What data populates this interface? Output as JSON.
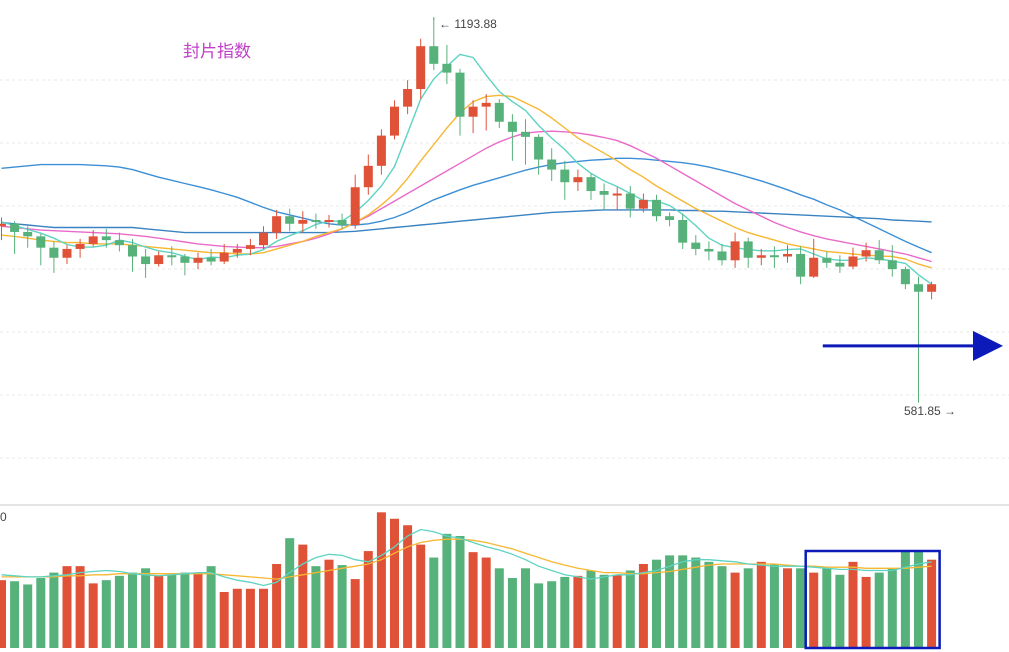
{
  "chart_data": {
    "type": "candlestick",
    "title": "封片指数",
    "annotations": {
      "high_label": "← 1193.88",
      "low_label": "581.85 →",
      "volume_axis_label": "0"
    },
    "price_range": [
      440,
      1215
    ],
    "colors": {
      "up": "#e05238",
      "down": "#56b17b",
      "ma5": "#5ed3c2",
      "ma10": "#f7b733",
      "ma20": "#ea6ac9",
      "ma60": "#3c8fd6",
      "ma120": "#3a83c2",
      "marker": "#0b1ab8"
    },
    "candles": [
      [
        862,
        866,
        848,
        876,
        840
      ],
      [
        866,
        853,
        846,
        870,
        818
      ],
      [
        853,
        846,
        838,
        862,
        828
      ],
      [
        846,
        828,
        820,
        850,
        800
      ],
      [
        828,
        812,
        822,
        838,
        788
      ],
      [
        812,
        826,
        812,
        832,
        802
      ],
      [
        826,
        834,
        828,
        842,
        812
      ],
      [
        834,
        846,
        840,
        856,
        830
      ],
      [
        846,
        840,
        850,
        858,
        828
      ],
      [
        840,
        832,
        842,
        852,
        822
      ],
      [
        832,
        814,
        828,
        842,
        790
      ],
      [
        814,
        802,
        812,
        826,
        780
      ],
      [
        802,
        816,
        814,
        822,
        798
      ],
      [
        816,
        814,
        806,
        830,
        800
      ],
      [
        814,
        804,
        812,
        818,
        784
      ],
      [
        804,
        812,
        808,
        820,
        794
      ],
      [
        812,
        806,
        818,
        826,
        800
      ],
      [
        806,
        820,
        816,
        834,
        802
      ],
      [
        820,
        826,
        824,
        834,
        812
      ],
      [
        826,
        832,
        820,
        842,
        816
      ],
      [
        832,
        852,
        846,
        862,
        826
      ],
      [
        852,
        878,
        870,
        888,
        842
      ],
      [
        878,
        866,
        874,
        890,
        854
      ],
      [
        866,
        872,
        876,
        886,
        852
      ],
      [
        872,
        870,
        866,
        882,
        858
      ],
      [
        870,
        872,
        864,
        880,
        860
      ],
      [
        872,
        864,
        872,
        882,
        858
      ],
      [
        864,
        924,
        902,
        944,
        858
      ],
      [
        924,
        958,
        950,
        976,
        912
      ],
      [
        958,
        1006,
        998,
        1016,
        944
      ],
      [
        1006,
        1052,
        1036,
        1062,
        1000
      ],
      [
        1052,
        1080,
        1058,
        1094,
        1040
      ],
      [
        1080,
        1148,
        1138,
        1160,
        1064
      ],
      [
        1148,
        1120,
        1140,
        1193.88,
        1110
      ],
      [
        1120,
        1106,
        1130,
        1150,
        1088
      ],
      [
        1106,
        1036,
        1090,
        1112,
        1006
      ],
      [
        1036,
        1052,
        1046,
        1062,
        1010
      ],
      [
        1052,
        1058,
        1050,
        1072,
        1014
      ],
      [
        1058,
        1028,
        1040,
        1064,
        1018
      ],
      [
        1028,
        1012,
        1022,
        1040,
        966
      ],
      [
        1012,
        1004,
        1004,
        1032,
        960
      ],
      [
        1004,
        968,
        978,
        1008,
        944
      ],
      [
        968,
        952,
        970,
        986,
        934
      ],
      [
        952,
        932,
        944,
        966,
        904
      ],
      [
        932,
        940,
        924,
        952,
        918
      ],
      [
        940,
        918,
        930,
        946,
        904
      ],
      [
        918,
        912,
        912,
        930,
        888
      ],
      [
        912,
        914,
        904,
        924,
        888
      ],
      [
        914,
        890,
        910,
        926,
        876
      ],
      [
        890,
        904,
        900,
        914,
        884
      ],
      [
        904,
        878,
        884,
        912,
        870
      ],
      [
        878,
        872,
        876,
        884,
        862
      ],
      [
        872,
        836,
        854,
        882,
        826
      ],
      [
        836,
        826,
        834,
        848,
        816
      ],
      [
        826,
        822,
        820,
        838,
        808
      ],
      [
        822,
        808,
        818,
        834,
        800
      ],
      [
        808,
        838,
        828,
        852,
        796
      ],
      [
        838,
        812,
        826,
        844,
        796
      ],
      [
        812,
        816,
        812,
        826,
        800
      ],
      [
        816,
        814,
        816,
        830,
        796
      ],
      [
        814,
        818,
        810,
        832,
        804
      ],
      [
        818,
        782,
        804,
        830,
        770
      ],
      [
        782,
        812,
        812,
        842,
        780
      ],
      [
        812,
        804,
        810,
        822,
        796
      ],
      [
        804,
        798,
        800,
        816,
        788
      ],
      [
        798,
        814,
        808,
        828,
        794
      ],
      [
        814,
        824,
        820,
        836,
        806
      ],
      [
        824,
        808,
        818,
        840,
        802
      ],
      [
        808,
        794,
        804,
        832,
        782
      ],
      [
        794,
        770,
        786,
        798,
        762
      ],
      [
        770,
        758,
        770,
        782,
        581.85
      ],
      [
        758,
        770,
        764,
        774,
        746
      ]
    ],
    "ma5": [
      869,
      863,
      857,
      851,
      843,
      833,
      829,
      829,
      832,
      840,
      836,
      829,
      823,
      820,
      814,
      809,
      813,
      812,
      816,
      818,
      825,
      838,
      847,
      855,
      865,
      870,
      870,
      884,
      903,
      926,
      957,
      1010,
      1064,
      1096,
      1116,
      1135,
      1130,
      1102,
      1076,
      1060,
      1046,
      1022,
      1002,
      984,
      962,
      946,
      934,
      925,
      914,
      903,
      902,
      895,
      881,
      863,
      843,
      832,
      828,
      825,
      823,
      823,
      825,
      826,
      818,
      810,
      808,
      808,
      812,
      810,
      807,
      803,
      785,
      770
    ],
    "ma10": [
      848,
      846,
      843,
      840,
      838,
      836,
      836,
      834,
      834,
      834,
      832,
      830,
      828,
      826,
      824,
      822,
      820,
      820,
      818,
      818,
      820,
      826,
      832,
      838,
      846,
      852,
      858,
      868,
      880,
      896,
      914,
      938,
      966,
      992,
      1018,
      1042,
      1060,
      1068,
      1070,
      1068,
      1058,
      1048,
      1034,
      1018,
      1002,
      990,
      978,
      966,
      952,
      940,
      926,
      914,
      902,
      890,
      880,
      870,
      860,
      852,
      846,
      840,
      834,
      830,
      826,
      822,
      820,
      818,
      816,
      815,
      814,
      810,
      802,
      796
    ],
    "ma20": [
      862,
      860,
      858,
      856,
      855,
      854,
      853,
      852,
      851,
      850,
      848,
      846,
      843,
      840,
      837,
      834,
      832,
      830,
      829,
      828,
      828,
      830,
      834,
      838,
      843,
      850,
      858,
      868,
      878,
      890,
      902,
      914,
      926,
      938,
      950,
      962,
      974,
      986,
      996,
      1004,
      1010,
      1012,
      1013,
      1012,
      1010,
      1007,
      1003,
      998,
      990,
      980,
      970,
      958,
      946,
      934,
      922,
      910,
      898,
      888,
      878,
      868,
      860,
      853,
      847,
      842,
      838,
      834,
      830,
      826,
      822,
      818,
      812,
      806
    ],
    "ma60": [
      954,
      956,
      958,
      960,
      960,
      960,
      960,
      959,
      958,
      956,
      952,
      946,
      940,
      935,
      930,
      925,
      920,
      914,
      908,
      900,
      892,
      885,
      880,
      875,
      870,
      866,
      864,
      864,
      866,
      870,
      876,
      884,
      894,
      904,
      912,
      920,
      927,
      933,
      939,
      945,
      951,
      956,
      960,
      963,
      965,
      967,
      968,
      970,
      970,
      969,
      967,
      965,
      963,
      960,
      956,
      951,
      946,
      940,
      934,
      927,
      920,
      912,
      905,
      896,
      888,
      878,
      868,
      858,
      848,
      838,
      829,
      820
    ],
    "ma120": [
      868,
      866,
      864,
      862,
      860,
      860,
      860,
      860,
      860,
      860,
      860,
      858,
      856,
      854,
      852,
      852,
      852,
      852,
      852,
      852,
      852,
      852,
      852,
      852,
      852,
      852,
      853,
      854,
      856,
      858,
      860,
      862,
      864,
      866,
      868,
      870,
      872,
      874,
      876,
      878,
      880,
      882,
      884,
      885,
      886,
      887,
      888,
      888,
      888,
      888,
      888,
      888,
      887,
      887,
      886,
      886,
      885,
      884,
      883,
      882,
      881,
      880,
      879,
      878,
      877,
      876,
      875,
      874,
      872,
      871,
      870,
      869
    ],
    "volume": [
      63,
      62,
      59,
      65,
      70,
      76,
      76,
      60,
      63,
      67,
      70,
      74,
      67,
      68,
      70,
      70,
      76,
      52,
      55,
      55,
      55,
      78,
      102,
      96,
      76,
      82,
      77,
      64,
      90,
      126,
      120,
      114,
      96,
      84,
      106,
      104,
      89,
      84,
      74,
      65,
      74,
      60,
      62,
      66,
      67,
      72,
      68,
      68,
      72,
      78,
      82,
      86,
      86,
      84,
      80,
      76,
      70,
      74,
      80,
      78,
      74,
      74,
      70,
      74,
      68,
      80,
      66,
      70,
      74,
      90,
      90,
      82
    ],
    "vol_ma5": [
      68,
      67,
      66,
      66,
      67,
      68,
      70,
      71,
      72,
      71,
      69,
      68,
      67,
      68,
      69,
      70,
      70,
      66,
      63,
      61,
      58,
      61,
      70,
      78,
      84,
      87,
      86,
      82,
      80,
      86,
      94,
      104,
      110,
      108,
      104,
      102,
      98,
      94,
      91,
      87,
      82,
      76,
      72,
      68,
      66,
      64,
      66,
      68,
      68,
      70,
      72,
      76,
      80,
      82,
      82,
      81,
      80,
      78,
      77,
      76,
      76,
      76,
      75,
      74,
      73,
      73,
      72,
      72,
      72,
      75,
      78,
      80
    ],
    "vol_ma10": [
      66,
      66,
      66,
      66,
      66,
      67,
      67,
      68,
      68,
      69,
      69,
      69,
      69,
      69,
      69,
      69,
      69,
      68,
      67,
      66,
      65,
      64,
      66,
      68,
      70,
      72,
      74,
      76,
      78,
      82,
      88,
      94,
      98,
      100,
      101,
      101,
      100,
      98,
      95,
      92,
      88,
      84,
      80,
      77,
      74,
      72,
      70,
      70,
      69,
      69,
      70,
      71,
      73,
      75,
      77,
      78,
      78,
      78,
      78,
      78,
      77,
      76,
      76,
      75,
      75,
      75,
      74,
      74,
      74,
      74,
      75,
      76
    ],
    "volume_range": [
      0,
      130
    ],
    "marker_level": 672,
    "highlight_range_index": [
      62,
      71
    ]
  }
}
